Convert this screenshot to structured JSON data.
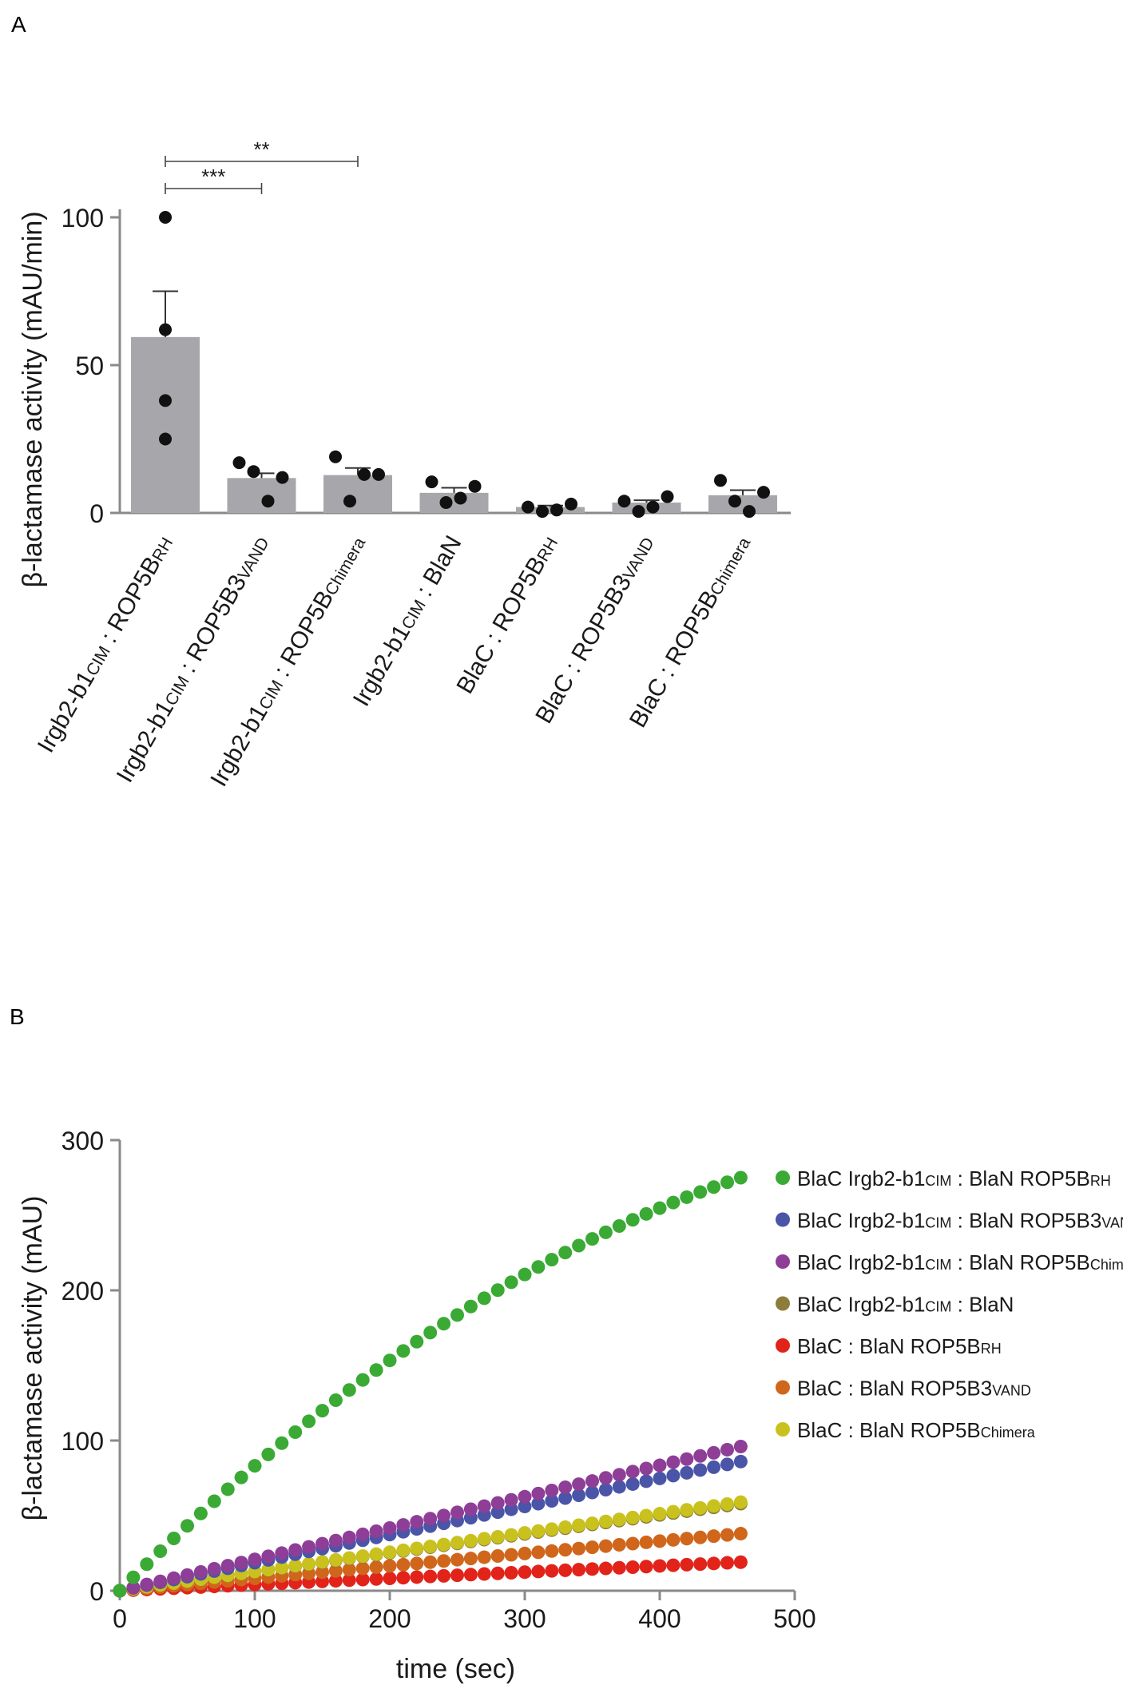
{
  "panels": {
    "a_label": "A",
    "b_label": "B"
  },
  "colors": {
    "axis": "#8a8a8a",
    "bar": "#a7a7ab",
    "point": "#111111",
    "text": "#1a1a1a"
  },
  "chart_data": [
    {
      "type": "bar",
      "panel": "A",
      "ylabel": "β-lactamase activity (mAU/min)",
      "ylim": [
        0,
        100
      ],
      "yticks": [
        0,
        50,
        100
      ],
      "categories": [
        {
          "main": "Irgb2-b1",
          "sub1": "CIM",
          "sep": " : ROP5B",
          "sub2": "RH"
        },
        {
          "main": "Irgb2-b1",
          "sub1": "CIM",
          "sep": " : ROP5B3",
          "sub2": "VAND"
        },
        {
          "main": "Irgb2-b1",
          "sub1": "CIM",
          "sep": " : ROP5B",
          "sub2": "Chimera"
        },
        {
          "main": "Irgb2-b1",
          "sub1": "CIM",
          "sep": " : BlaN",
          "sub2": ""
        },
        {
          "main": "BlaC : ROP5B",
          "sub1": "RH",
          "sep": "",
          "sub2": ""
        },
        {
          "main": "BlaC : ROP5B3",
          "sub1": "VAND",
          "sep": "",
          "sub2": ""
        },
        {
          "main": "BlaC : ROP5B",
          "sub1": "Chimera",
          "sep": "",
          "sub2": ""
        }
      ],
      "means": [
        59.5,
        11.8,
        12.8,
        6.8,
        2.0,
        3.5,
        6.0
      ],
      "sem": [
        15.5,
        1.6,
        2.4,
        1.7,
        0.5,
        0.8,
        1.7
      ],
      "points": [
        [
          100,
          62,
          38,
          25
        ],
        [
          17,
          14,
          4,
          12
        ],
        [
          19,
          4,
          13,
          13
        ],
        [
          10.5,
          3.5,
          5,
          9
        ],
        [
          2,
          0.5,
          1,
          3
        ],
        [
          4,
          0.5,
          2,
          5.5
        ],
        [
          11,
          4,
          0.5,
          7
        ]
      ],
      "significance": [
        {
          "from": 0,
          "to": 1,
          "label": "***"
        },
        {
          "from": 0,
          "to": 2,
          "label": "**"
        }
      ]
    },
    {
      "type": "scatter",
      "panel": "B",
      "xlabel": "time (sec)",
      "ylabel": "β-lactamase activity (mAU)",
      "xlim": [
        0,
        500
      ],
      "ylim": [
        0,
        300
      ],
      "xticks": [
        0,
        100,
        200,
        300,
        400,
        500
      ],
      "yticks": [
        0,
        100,
        200,
        300
      ],
      "time_step_sec": 10,
      "n_points": 47,
      "series": [
        {
          "main": "BlaC Irgb2-b1",
          "sub1": "CIM",
          "mid": " : BlaN ROP5B",
          "sub2": "RH",
          "color": "#3aaa35",
          "endpoint": 275,
          "curve": 0.5
        },
        {
          "main": "BlaC Irgb2-b1",
          "sub1": "CIM",
          "mid": " : BlaN ROP5B3",
          "sub2": "VAND",
          "color": "#4a55a8",
          "endpoint": 86,
          "curve": 0
        },
        {
          "main": "BlaC Irgb2-b1",
          "sub1": "CIM",
          "mid": " : BlaN ROP5B",
          "sub2": "Chimera",
          "color": "#8e3e97",
          "endpoint": 96,
          "curve": 0
        },
        {
          "main": "BlaC Irgb2-b1",
          "sub1": "CIM",
          "mid": " : BlaN",
          "sub2": "",
          "color": "#8d7d3a",
          "endpoint": 58,
          "curve": 0
        },
        {
          "main": "BlaC : BlaN ROP5B",
          "sub1": "RH",
          "mid": "",
          "sub2": "",
          "color": "#e2231a",
          "endpoint": 19,
          "curve": 0
        },
        {
          "main": "BlaC : BlaN ROP5B3",
          "sub1": "VAND",
          "mid": "",
          "sub2": "",
          "color": "#d0661b",
          "endpoint": 38,
          "curve": 0
        },
        {
          "main": "BlaC : BlaN ROP5B",
          "sub1": "Chimera",
          "mid": "",
          "sub2": "",
          "color": "#c9c21e",
          "endpoint": 59,
          "curve": 0
        }
      ]
    }
  ]
}
